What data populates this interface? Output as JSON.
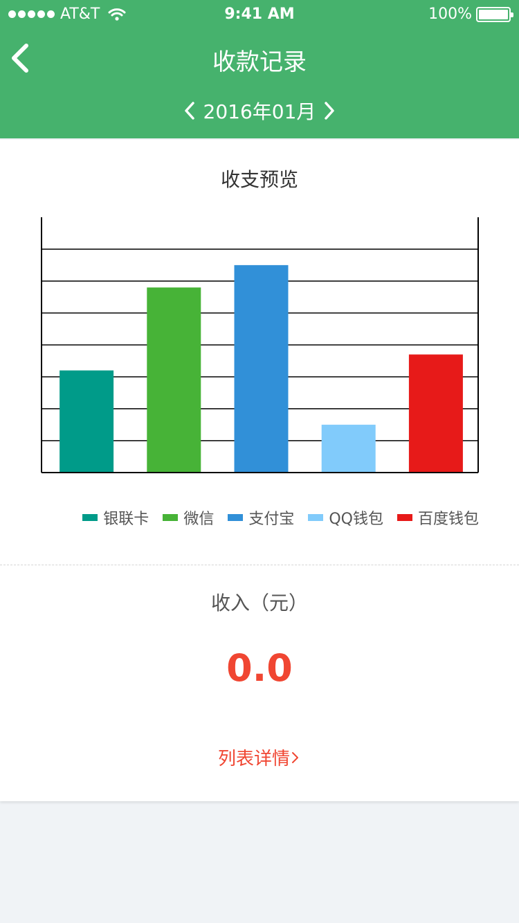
{
  "status_bar": {
    "carrier": "AT&T",
    "time": "9:41 AM",
    "battery": "100%"
  },
  "header": {
    "title": "收款记录",
    "month": "2016年01月",
    "back_icon": "chevron-left-icon",
    "prev_icon": "chevron-left-icon",
    "next_icon": "chevron-right-icon",
    "background_color": "#46b26d"
  },
  "chart_section": {
    "title": "收支预览"
  },
  "chart_data": {
    "type": "bar",
    "title": "收支预览",
    "categories": [
      "银联卡",
      "微信",
      "支付宝",
      "QQ钱包",
      "百度钱包"
    ],
    "values": [
      3.2,
      5.8,
      6.5,
      1.5,
      3.7
    ],
    "colors": [
      "#009b89",
      "#47b337",
      "#3190d8",
      "#81cbfb",
      "#e71a19"
    ],
    "ylim": [
      0,
      8
    ],
    "grid": true,
    "legend": "bottom-right"
  },
  "income": {
    "label": "收入（元）",
    "value": "0.0",
    "color": "#f04632"
  },
  "details_link": {
    "label": "列表详情",
    "icon": "chevron-right-icon"
  }
}
